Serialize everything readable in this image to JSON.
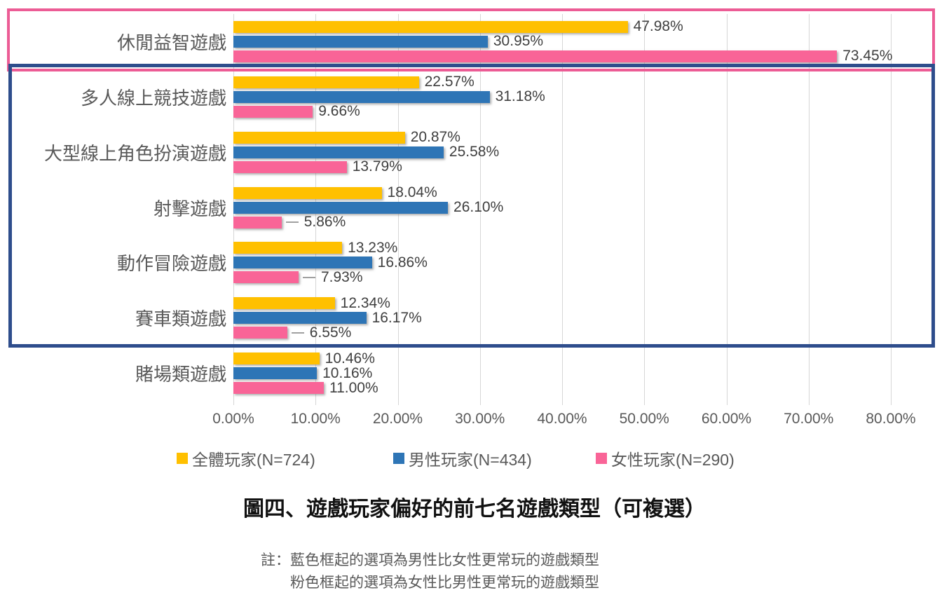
{
  "chart_data": {
    "type": "bar",
    "orientation": "horizontal",
    "title": "圖四、遊戲玩家偏好的前七名遊戲類型（可複選）",
    "categories": [
      "休閒益智遊戲",
      "多人線上競技遊戲",
      "大型線上角色扮演遊戲",
      "射擊遊戲",
      "動作冒險遊戲",
      "賽車類遊戲",
      "賭場類遊戲"
    ],
    "series": [
      {
        "name": "全體玩家(N=724)",
        "color": "#FFC000",
        "values": [
          47.98,
          22.57,
          20.87,
          18.04,
          13.23,
          12.34,
          10.46
        ],
        "labels": [
          "47.98%",
          "22.57%",
          "20.87%",
          "18.04%",
          "13.23%",
          "12.34%",
          "10.46%"
        ]
      },
      {
        "name": "男性玩家(N=434)",
        "color": "#2E75B6",
        "values": [
          30.95,
          31.18,
          25.58,
          26.1,
          16.86,
          16.17,
          10.16
        ],
        "labels": [
          "30.95%",
          "31.18%",
          "25.58%",
          "26.10%",
          "16.86%",
          "16.17%",
          "10.16%"
        ]
      },
      {
        "name": "女性玩家(N=290)",
        "color": "#F96497",
        "values": [
          73.45,
          9.66,
          13.79,
          5.86,
          7.93,
          6.55,
          11.0
        ],
        "labels": [
          "73.45%",
          "9.66%",
          "13.79%",
          "5.86%",
          "7.93%",
          "6.55%",
          "11.00%"
        ]
      }
    ],
    "xlim": [
      0,
      80
    ],
    "x_ticks": [
      "0.00%",
      "10.00%",
      "20.00%",
      "30.00%",
      "40.00%",
      "50.00%",
      "60.00%",
      "70.00%",
      "80.00%"
    ],
    "grid": true,
    "legend_position": "bottom",
    "leader_label_points": [
      [
        3,
        2
      ],
      [
        4,
        2
      ],
      [
        5,
        2
      ]
    ],
    "highlight_boxes": [
      {
        "id": "pink-box",
        "color": "#EC5C95",
        "row_start": 0,
        "row_end": 0
      },
      {
        "id": "blue-box",
        "color": "#2E4D8C",
        "row_start": 1,
        "row_end": 5
      }
    ]
  },
  "notes": {
    "prefix": "註：",
    "line1": "藍色框起的選項為男性比女性更常玩的遊戲類型",
    "line2": "粉色框起的選項為女性比男性更常玩的遊戲類型"
  }
}
